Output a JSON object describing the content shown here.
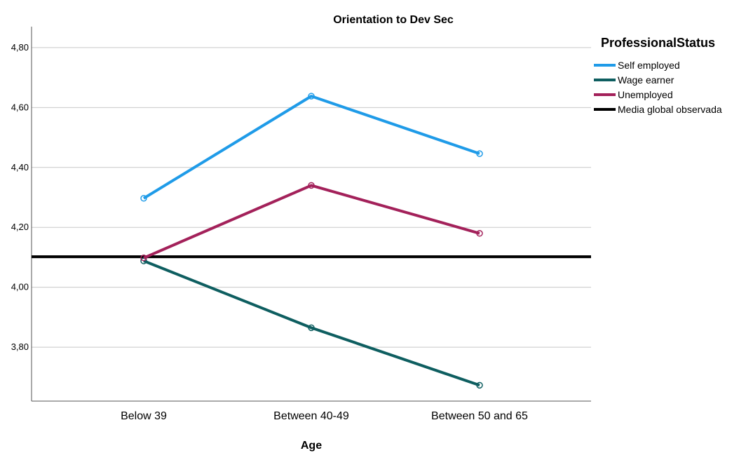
{
  "chart_data": {
    "type": "line",
    "title": "Orientation to Dev Sec",
    "xlabel": "Age",
    "ylabel": "",
    "categories": [
      "Below 39",
      "Between 40-49",
      "Between 50 and 65"
    ],
    "ylim": [
      3.62,
      4.87
    ],
    "yticks": [
      3.8,
      4.0,
      4.2,
      4.4,
      4.6,
      4.8
    ],
    "ytick_labels": [
      "3,80",
      "4,00",
      "4,20",
      "4,40",
      "4,60",
      "4,80"
    ],
    "grid": true,
    "legend_title": "ProfessionalStatus",
    "legend_position": "top-right",
    "series": [
      {
        "name": "Self employed",
        "color": "#1f9be8",
        "values": [
          4.297,
          4.638,
          4.446
        ]
      },
      {
        "name": "Wage earner",
        "color": "#0e5e60",
        "values": [
          4.088,
          3.865,
          3.673
        ]
      },
      {
        "name": "Unemployed",
        "color": "#a3215a",
        "values": [
          4.098,
          4.34,
          4.18
        ]
      }
    ],
    "reference_line": {
      "name": "Media global observada",
      "color": "#000000",
      "value": 4.102
    }
  }
}
